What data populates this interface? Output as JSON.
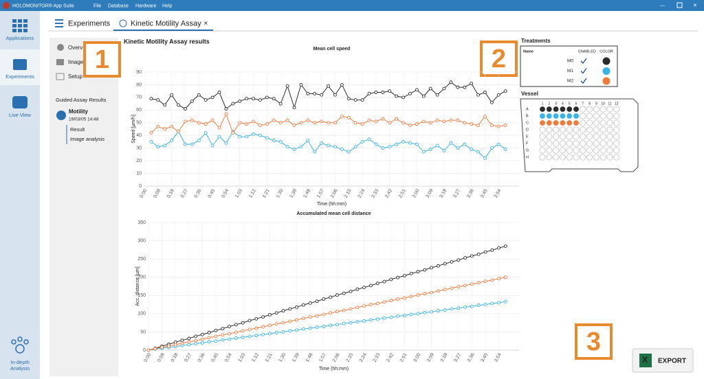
{
  "titlebar": {
    "title": "HOLOMONITOR® App Suite",
    "menu": [
      "File",
      "Database",
      "Hardware",
      "Help"
    ]
  },
  "sidebar": [
    "Applications",
    "Experiments",
    "Live View",
    "In-depth Analysis"
  ],
  "tabs": [
    "Experiments",
    "Kinetic Motility Assay"
  ],
  "panel": {
    "items": [
      "Overv",
      "Images",
      "Setup"
    ],
    "section": "Guided Assay Results",
    "assay": "Motility",
    "date": "19/03/05 14:48",
    "subitems": [
      "Result",
      "Image analysis"
    ]
  },
  "heading": "Kinetic Motility Assay results",
  "treatments": {
    "title": "Treatments",
    "headers": [
      "Name",
      "ENABLED",
      "COLOR"
    ],
    "rows": [
      {
        "name": "M0",
        "enabled": true,
        "color": "#2b2b2b"
      },
      {
        "name": "M1",
        "enabled": true,
        "color": "#36b3ea"
      },
      {
        "name": "M2",
        "enabled": true,
        "color": "#f07a3a"
      }
    ]
  },
  "vessel": {
    "title": "Vessel",
    "rows": [
      "A",
      "B",
      "C",
      "D",
      "E",
      "F",
      "G",
      "H"
    ],
    "columns": [
      "1",
      "2",
      "3",
      "4",
      "5",
      "6",
      "7",
      "8",
      "9",
      "10",
      "11",
      "12"
    ]
  },
  "callouts": [
    "1",
    "2",
    "3"
  ],
  "export": "EXPORT",
  "chart_data": [
    {
      "type": "line",
      "title": "Mean cell speed",
      "y_label": "Speed [µm/h]",
      "x_label": "Time (hh:mm)",
      "categories": [
        "0:00",
        null,
        "0:09",
        null,
        "0:18",
        null,
        "0:27",
        null,
        "0:36",
        null,
        "0:45",
        null,
        "0:54",
        null,
        "1:03",
        null,
        "1:12",
        null,
        "1:21",
        null,
        "1:30",
        null,
        "1:39",
        null,
        "1:48",
        null,
        "1:57",
        null,
        "2:06",
        null,
        "2:15",
        null,
        "2:24",
        null,
        "2:33",
        null,
        "2:42",
        null,
        "2:51",
        null,
        "3:00",
        null,
        "3:09",
        null,
        "3:18",
        null,
        "3:27",
        null,
        "3:36",
        null,
        "3:45",
        null,
        "3:54",
        null
      ],
      "ylim": [
        0,
        90
      ],
      "yticks": [
        0,
        10,
        20,
        30,
        40,
        50,
        60,
        70,
        80,
        90
      ],
      "grid": true,
      "series": [
        {
          "name": "M0",
          "color": "#2b2b2b",
          "values": [
            null,
            69,
            68,
            64,
            72,
            64,
            61,
            67,
            72,
            68,
            70,
            74,
            61,
            65,
            67,
            69,
            69,
            68,
            70,
            69,
            65,
            79,
            62,
            80,
            73,
            73,
            72,
            79,
            72,
            80,
            69,
            68,
            68,
            73,
            74,
            74,
            75,
            71,
            70,
            73,
            76,
            71,
            77,
            72,
            77,
            82,
            78,
            78,
            81,
            72,
            74,
            66,
            72,
            75
          ]
        },
        {
          "name": "M1",
          "color": "#36b3ea",
          "values": [
            null,
            35,
            31,
            32,
            36,
            43,
            33,
            33,
            36,
            42,
            32,
            39,
            34,
            43,
            39,
            39,
            41,
            40,
            38,
            36,
            35,
            31,
            29,
            31,
            36,
            27,
            34,
            32,
            31,
            29,
            27,
            31,
            35,
            37,
            33,
            30,
            31,
            33,
            35,
            34,
            33,
            27,
            29,
            32,
            28,
            34,
            30,
            33,
            29,
            27,
            22,
            30,
            33,
            29
          ]
        },
        {
          "name": "M2",
          "color": "#f07a3a",
          "values": [
            null,
            42,
            47,
            45,
            47,
            43,
            51,
            52,
            50,
            49,
            52,
            46,
            57,
            42,
            50,
            49,
            51,
            48,
            49,
            52,
            50,
            52,
            48,
            50,
            52,
            50,
            51,
            50,
            50,
            55,
            54,
            50,
            49,
            52,
            51,
            53,
            50,
            53,
            50,
            48,
            49,
            51,
            50,
            52,
            51,
            52,
            52,
            50,
            49,
            48,
            55,
            48,
            47,
            48
          ]
        }
      ]
    },
    {
      "type": "line",
      "title": "Accumulated mean cell distance",
      "y_label": "Acc. distance [µm]",
      "x_label": "Time (hh:mm)",
      "categories": [
        "0:00",
        null,
        "0:09",
        null,
        "0:18",
        null,
        "0:27",
        null,
        "0:36",
        null,
        "0:45",
        null,
        "0:54",
        null,
        "1:03",
        null,
        "1:12",
        null,
        "1:21",
        null,
        "1:30",
        null,
        "1:39",
        null,
        "1:48",
        null,
        "1:57",
        null,
        "2:06",
        null,
        "2:15",
        null,
        "2:24",
        null,
        "2:33",
        null,
        "2:42",
        null,
        "2:51",
        null,
        "3:00",
        null,
        "3:09",
        null,
        "3:18",
        null,
        "3:27",
        null,
        "3:36",
        null,
        "3:45",
        null,
        "3:54",
        null
      ],
      "ylim": [
        0,
        350
      ],
      "yticks": [
        0,
        50,
        100,
        150,
        200,
        250,
        300,
        350
      ],
      "grid": true,
      "series": [
        {
          "name": "M0",
          "color": "#2b2b2b",
          "values": [
            0,
            5,
            11,
            16,
            22,
            27,
            32,
            38,
            43,
            48,
            54,
            59,
            65,
            70,
            75,
            81,
            86,
            91,
            97,
            102,
            108,
            113,
            118,
            124,
            129,
            134,
            140,
            145,
            151,
            156,
            161,
            167,
            172,
            177,
            183,
            188,
            194,
            199,
            204,
            210,
            215,
            220,
            226,
            231,
            237,
            242,
            247,
            253,
            258,
            263,
            269,
            274,
            280,
            285
          ]
        },
        {
          "name": "M1",
          "color": "#36b3ea",
          "values": [
            0,
            3,
            5,
            8,
            10,
            13,
            15,
            18,
            20,
            23,
            25,
            28,
            30,
            33,
            35,
            38,
            40,
            43,
            45,
            48,
            50,
            53,
            55,
            58,
            60,
            63,
            65,
            68,
            70,
            73,
            75,
            78,
            80,
            83,
            85,
            88,
            90,
            93,
            95,
            98,
            100,
            103,
            105,
            108,
            110,
            113,
            115,
            118,
            120,
            123,
            125,
            128,
            130,
            133
          ]
        },
        {
          "name": "M2",
          "color": "#f07a3a",
          "values": [
            0,
            4,
            8,
            11,
            15,
            19,
            23,
            26,
            30,
            34,
            38,
            42,
            45,
            49,
            53,
            57,
            60,
            64,
            68,
            72,
            75,
            79,
            83,
            87,
            91,
            94,
            98,
            102,
            106,
            109,
            113,
            117,
            121,
            125,
            128,
            132,
            136,
            140,
            143,
            147,
            151,
            155,
            158,
            162,
            166,
            170,
            174,
            177,
            181,
            185,
            189,
            192,
            196,
            200
          ]
        }
      ]
    }
  ]
}
